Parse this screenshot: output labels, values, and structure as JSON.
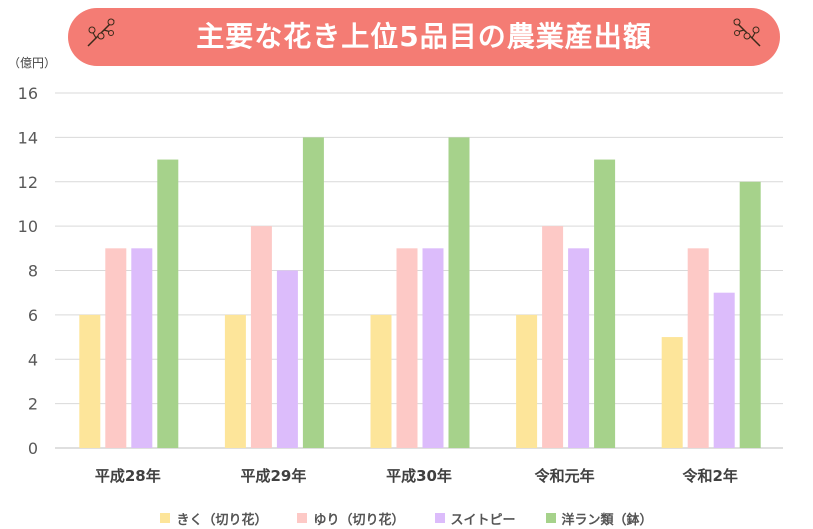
{
  "title": "主要な花き上位5品目の農業産出額",
  "unit_label": "（億円）",
  "colors": {
    "title_background": "#f47c74",
    "title_text": "#ffffff",
    "series": [
      "#fde59a",
      "#fdc9c6",
      "#dcbcfb",
      "#a6d28b"
    ]
  },
  "icons": {
    "title_decoration": "flower-branch-icon"
  },
  "chart_data": {
    "type": "bar",
    "title": "主要な花き上位5品目の農業産出額",
    "ylabel": "（億円）",
    "xlabel": "",
    "ylim": [
      0,
      16
    ],
    "yticks": [
      0,
      2,
      4,
      6,
      8,
      10,
      12,
      14,
      16
    ],
    "grid": true,
    "legend_position": "bottom",
    "categories": [
      "平成28年",
      "平成29年",
      "平成30年",
      "令和元年",
      "令和2年"
    ],
    "series": [
      {
        "name": "きく（切り花）",
        "values": [
          6,
          6,
          6,
          6,
          5
        ]
      },
      {
        "name": "ゆり（切り花）",
        "values": [
          9,
          10,
          9,
          10,
          9
        ]
      },
      {
        "name": "スイトピー",
        "values": [
          9,
          8,
          9,
          9,
          7
        ]
      },
      {
        "name": "洋ラン類（鉢）",
        "values": [
          13,
          14,
          14,
          13,
          12
        ]
      }
    ]
  }
}
